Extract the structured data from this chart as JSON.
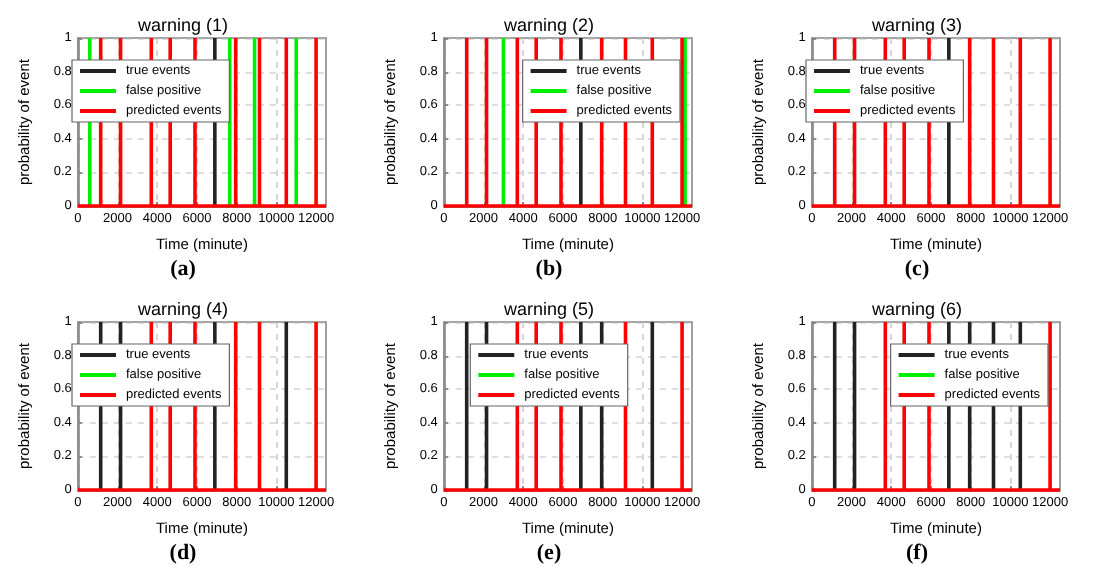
{
  "chart_data": [
    {
      "type": "bar",
      "title": "warning (1)",
      "xlabel": "Time (minute)",
      "ylabel": "probability of event",
      "xlim": [
        0,
        12500
      ],
      "ylim": [
        0,
        1
      ],
      "xticks": [
        0,
        2000,
        4000,
        6000,
        8000,
        10000,
        12000
      ],
      "yticks": [
        0,
        0.2,
        0.4,
        0.6,
        0.8,
        1
      ],
      "grid": true,
      "legend": "top left",
      "annotations": [
        "(a)"
      ],
      "ref_lines": [
        {
          "axis": "y",
          "value": 0,
          "color": "#ff0000"
        }
      ],
      "series": [
        {
          "name": "true events",
          "color": "#222222",
          "x": [
            6900
          ],
          "values": [
            1
          ]
        },
        {
          "name": "false positive",
          "color": "#00ee00",
          "x": [
            600,
            7650,
            8900,
            11000
          ],
          "values": [
            1,
            1,
            1,
            1
          ]
        },
        {
          "name": "predicted events",
          "color": "#ff0000",
          "x": [
            1150,
            2150,
            3700,
            4650,
            5900,
            7950,
            9150,
            10500,
            12000
          ],
          "values": [
            1,
            1,
            1,
            1,
            1,
            1,
            1,
            1,
            1
          ]
        }
      ]
    },
    {
      "type": "bar",
      "title": "warning (2)",
      "xlabel": "Time (minute)",
      "ylabel": "probability of event",
      "xlim": [
        0,
        12500
      ],
      "ylim": [
        0,
        1
      ],
      "xticks": [
        0,
        2000,
        4000,
        6000,
        8000,
        10000,
        12000
      ],
      "yticks": [
        0,
        0.2,
        0.4,
        0.6,
        0.8,
        1
      ],
      "grid": true,
      "legend": "top right",
      "annotations": [
        "(b)"
      ],
      "ref_lines": [
        {
          "axis": "y",
          "value": 0,
          "color": "#ff0000"
        }
      ],
      "series": [
        {
          "name": "true events",
          "color": "#222222",
          "x": [
            6900
          ],
          "values": [
            1
          ]
        },
        {
          "name": "false positive",
          "color": "#00ee00",
          "x": [
            3000,
            12150
          ],
          "values": [
            1,
            1
          ]
        },
        {
          "name": "predicted events",
          "color": "#ff0000",
          "x": [
            1150,
            2150,
            3700,
            4650,
            5900,
            7950,
            9150,
            10500,
            12000
          ],
          "values": [
            1,
            1,
            1,
            1,
            1,
            1,
            1,
            1,
            1
          ]
        }
      ]
    },
    {
      "type": "bar",
      "title": "warning (3)",
      "xlabel": "Time (minute)",
      "ylabel": "probability of event",
      "xlim": [
        0,
        12500
      ],
      "ylim": [
        0,
        1
      ],
      "xticks": [
        0,
        2000,
        4000,
        6000,
        8000,
        10000,
        12000
      ],
      "yticks": [
        0,
        0.2,
        0.4,
        0.6,
        0.8,
        1
      ],
      "grid": true,
      "legend": "top left",
      "annotations": [
        "(c)"
      ],
      "ref_lines": [
        {
          "axis": "y",
          "value": 0,
          "color": "#ff0000"
        }
      ],
      "series": [
        {
          "name": "true events",
          "color": "#222222",
          "x": [
            6900
          ],
          "values": [
            1
          ]
        },
        {
          "name": "false positive",
          "color": "#00ee00"
        },
        {
          "name": "predicted events",
          "color": "#ff0000",
          "x": [
            1150,
            2150,
            3700,
            4650,
            5900,
            7950,
            9150,
            10500,
            12000
          ],
          "values": [
            1,
            1,
            1,
            1,
            1,
            1,
            1,
            1,
            1
          ]
        }
      ]
    },
    {
      "type": "bar",
      "title": "warning (4)",
      "xlabel": "Time (minute)",
      "ylabel": "probability of event",
      "xlim": [
        0,
        12500
      ],
      "ylim": [
        0,
        1
      ],
      "xticks": [
        0,
        2000,
        4000,
        6000,
        8000,
        10000,
        12000
      ],
      "yticks": [
        0,
        0.2,
        0.4,
        0.6,
        0.8,
        1
      ],
      "grid": true,
      "legend": "top left",
      "annotations": [
        "(d)"
      ],
      "ref_lines": [
        {
          "axis": "y",
          "value": 0,
          "color": "#ff0000"
        }
      ],
      "series": [
        {
          "name": "true events",
          "color": "#222222",
          "x": [
            1150,
            2150,
            6900,
            10500
          ],
          "values": [
            1,
            1,
            1,
            1
          ]
        },
        {
          "name": "false positive",
          "color": "#00ee00"
        },
        {
          "name": "predicted events",
          "color": "#ff0000",
          "x": [
            3700,
            4650,
            5900,
            7950,
            9150,
            12000
          ],
          "values": [
            1,
            1,
            1,
            1,
            1,
            1
          ]
        }
      ]
    },
    {
      "type": "bar",
      "title": "warning (5)",
      "xlabel": "Time (minute)",
      "ylabel": "probability of event",
      "xlim": [
        0,
        12500
      ],
      "ylim": [
        0,
        1
      ],
      "xticks": [
        0,
        2000,
        4000,
        6000,
        8000,
        10000,
        12000
      ],
      "yticks": [
        0,
        0.2,
        0.4,
        0.6,
        0.8,
        1
      ],
      "grid": true,
      "legend": "top",
      "annotations": [
        "(e)"
      ],
      "ref_lines": [
        {
          "axis": "y",
          "value": 0,
          "color": "#ff0000"
        }
      ],
      "series": [
        {
          "name": "true events",
          "color": "#222222",
          "x": [
            1150,
            2150,
            6900,
            7950,
            10500
          ],
          "values": [
            1,
            1,
            1,
            1,
            1
          ]
        },
        {
          "name": "false positive",
          "color": "#00ee00"
        },
        {
          "name": "predicted events",
          "color": "#ff0000",
          "x": [
            3700,
            4650,
            5900,
            9150,
            12000
          ],
          "values": [
            1,
            1,
            1,
            1,
            1
          ]
        }
      ]
    },
    {
      "type": "bar",
      "title": "warning (6)",
      "xlabel": "Time (minute)",
      "ylabel": "probability of event",
      "xlim": [
        0,
        12500
      ],
      "ylim": [
        0,
        1
      ],
      "xticks": [
        0,
        2000,
        4000,
        6000,
        8000,
        10000,
        12000
      ],
      "yticks": [
        0,
        0.2,
        0.4,
        0.6,
        0.8,
        1
      ],
      "grid": true,
      "legend": "top right",
      "annotations": [
        "(f)"
      ],
      "ref_lines": [
        {
          "axis": "y",
          "value": 0,
          "color": "#ff0000"
        }
      ],
      "series": [
        {
          "name": "true events",
          "color": "#222222",
          "x": [
            1150,
            2150,
            6900,
            7950,
            9150,
            10500
          ],
          "values": [
            1,
            1,
            1,
            1,
            1,
            1
          ]
        },
        {
          "name": "false positive",
          "color": "#00ee00"
        },
        {
          "name": "predicted events",
          "color": "#ff0000",
          "x": [
            3700,
            4650,
            5900,
            12000
          ],
          "values": [
            1,
            1,
            1,
            1
          ]
        }
      ]
    }
  ]
}
